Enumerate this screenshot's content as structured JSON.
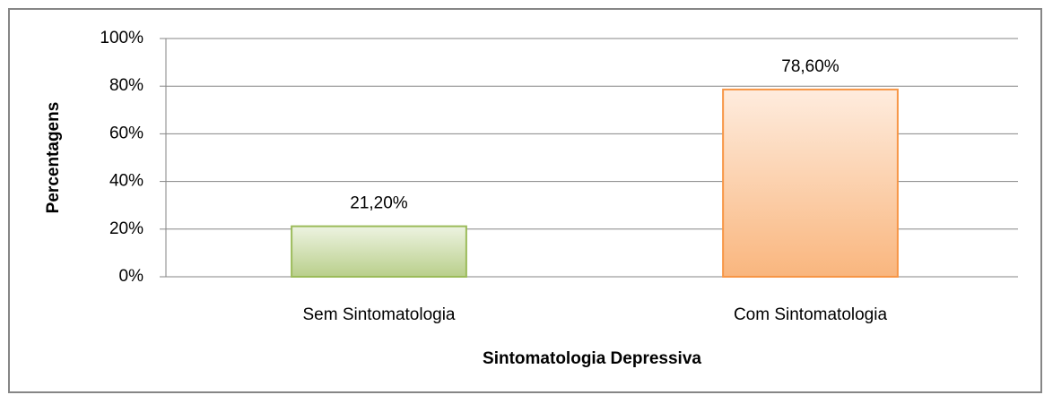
{
  "chart_data": {
    "type": "bar",
    "categories": [
      "Sem Sintomatologia",
      "Com Sintomatologia"
    ],
    "values": [
      21.2,
      78.6
    ],
    "value_labels": [
      "21,20%",
      "78,60%"
    ],
    "colors": [
      "#9bbb59",
      "#f79646"
    ],
    "x_label": "Sintomatologia Depressiva",
    "y_label": "Percentagens",
    "ylim": [
      0,
      100
    ],
    "yticks": [
      {
        "value": 0,
        "label": "0%"
      },
      {
        "value": 20,
        "label": "20%"
      },
      {
        "value": 40,
        "label": "40%"
      },
      {
        "value": 60,
        "label": "60%"
      },
      {
        "value": 80,
        "label": "80%"
      },
      {
        "value": 100,
        "label": "100%"
      }
    ],
    "grid": true
  }
}
